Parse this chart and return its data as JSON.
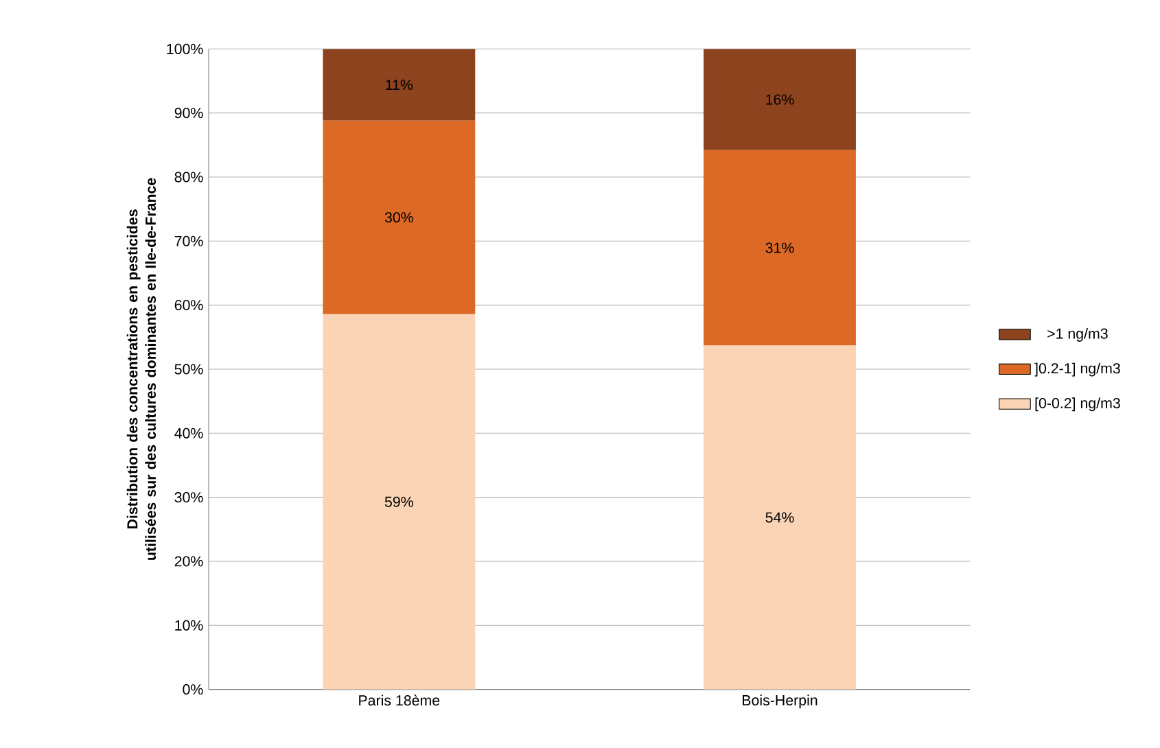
{
  "chart_data": {
    "type": "bar",
    "stacked": true,
    "ylabel": "Distribution des concentrations en pesticides utilisées sur des cultures dominantes en Ile-de-France",
    "categories": [
      "Paris 18ème",
      "Bois-Herpin"
    ],
    "series": [
      {
        "name": "[0-0.2] ng/m3",
        "color": "#fad4b4",
        "values": [
          58.6,
          53.7
        ],
        "value_labels": [
          "59%",
          "54%"
        ]
      },
      {
        "name": "]0.2-1] ng/m3",
        "color": "#dc6a26",
        "values": [
          30.2,
          30.5
        ],
        "value_labels": [
          "30%",
          "31%"
        ]
      },
      {
        "name": ">1 ng/m3",
        "color": "#8e431f",
        "values": [
          11.2,
          15.8
        ],
        "value_labels": [
          "11%",
          "16%"
        ]
      }
    ],
    "ylim": [
      0,
      100
    ],
    "yticks": [
      {
        "value": 0,
        "label": "0%"
      },
      {
        "value": 10,
        "label": "10%"
      },
      {
        "value": 20,
        "label": "20%"
      },
      {
        "value": 30,
        "label": "30%"
      },
      {
        "value": 40,
        "label": "40%"
      },
      {
        "value": 50,
        "label": "50%"
      },
      {
        "value": 60,
        "label": "60%"
      },
      {
        "value": 70,
        "label": "70%"
      },
      {
        "value": 80,
        "label": "80%"
      },
      {
        "value": 90,
        "label": "90%"
      },
      {
        "value": 100,
        "label": "100%"
      }
    ],
    "grid": "y",
    "legend": "right"
  }
}
